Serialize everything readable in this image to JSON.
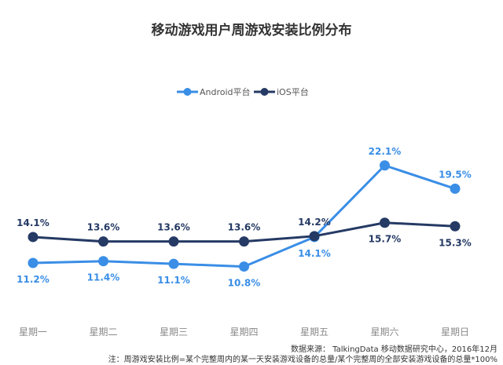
{
  "chart_data": {
    "type": "line",
    "title": "移动游戏用户周游戏安装比例分布",
    "categories": [
      "星期一",
      "星期二",
      "星期三",
      "星期四",
      "星期五",
      "星期六",
      "星期日"
    ],
    "series": [
      {
        "name": "Android平台",
        "color": "#3a8ee6",
        "values": [
          11.2,
          11.4,
          11.1,
          10.8,
          14.1,
          22.1,
          19.5
        ],
        "labels": [
          "11.2%",
          "11.4%",
          "11.1%",
          "10.8%",
          "14.1%",
          "22.1%",
          "19.5%"
        ]
      },
      {
        "name": "iOS平台",
        "color": "#253a64",
        "values": [
          14.1,
          13.6,
          13.6,
          13.6,
          14.2,
          15.7,
          15.3
        ],
        "labels": [
          "14.1%",
          "13.6%",
          "13.6%",
          "13.6%",
          "14.2%",
          "15.7%",
          "15.3%"
        ]
      }
    ],
    "legend_position": "top-center",
    "xlabel": "",
    "ylabel": "",
    "grid": false
  },
  "footnotes": {
    "source": "数据来源： TalkingData 移动数据研究中心，2016年12月",
    "note": "注：周游戏安装比例=某个完整周内的某一天安装游戏设备的总量/某个完整周的全部安装游戏设备的总量*100%"
  }
}
